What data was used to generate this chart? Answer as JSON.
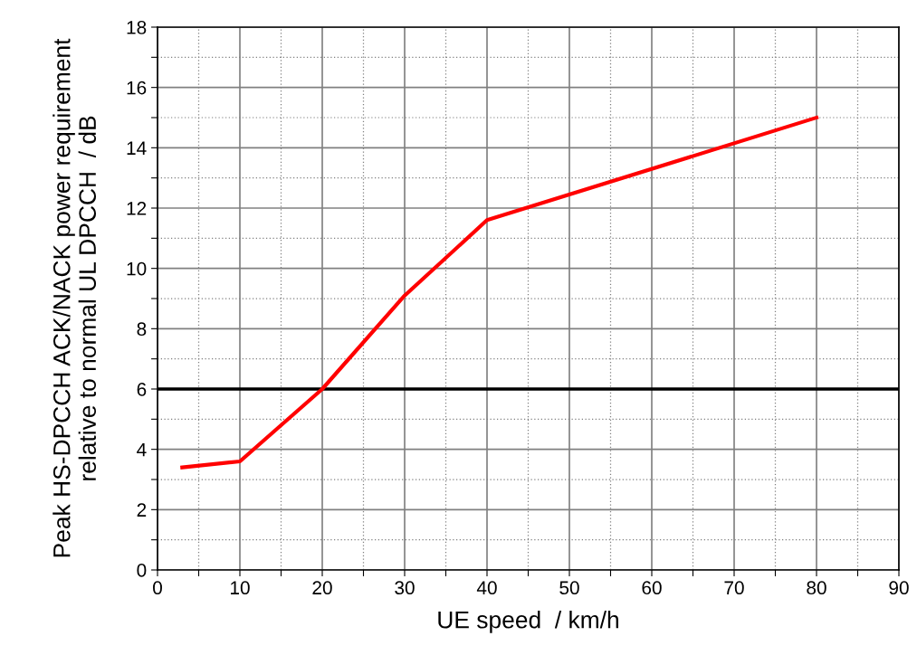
{
  "chart_data": {
    "type": "line",
    "xlabel": "UE speed  / km/h",
    "ylabel": "Peak HS-DPCCH ACK/NACK power requirement\nrelative to normal UL DPCCH  / dB",
    "x": [
      3,
      10,
      20,
      30,
      40,
      80
    ],
    "series": [
      {
        "color": "#ff0000",
        "values": [
          3.4,
          3.6,
          6.0,
          9.1,
          11.6,
          15.0
        ]
      }
    ],
    "xlim": [
      0,
      90
    ],
    "xticks": [
      0,
      {
        "value": 5,
        "label": null
      },
      10,
      {
        "value": 15,
        "label": null
      },
      20,
      {
        "value": 25,
        "label": null
      },
      30,
      {
        "value": 35,
        "label": null
      },
      40,
      {
        "value": 45,
        "label": null
      },
      50,
      {
        "value": 55,
        "label": null
      },
      60,
      {
        "value": 65,
        "label": null
      },
      70,
      {
        "value": 75,
        "label": null
      },
      80,
      {
        "value": 85,
        "label": null
      },
      90
    ],
    "ylim": [
      0,
      18
    ],
    "yticks": [
      0,
      {
        "value": 1,
        "label": null
      },
      2,
      {
        "value": 3,
        "label": null
      },
      4,
      {
        "value": 5,
        "label": null
      },
      6,
      {
        "value": 7,
        "label": null
      },
      8,
      {
        "value": 9,
        "label": null
      },
      10,
      {
        "value": 11,
        "label": null
      },
      12,
      {
        "value": 13,
        "label": null
      },
      14,
      {
        "value": 15,
        "label": null
      },
      16,
      {
        "value": 17,
        "label": null
      },
      18
    ],
    "ref_lines": [
      {
        "axis": "y",
        "value": 6,
        "color": "#000000"
      }
    ],
    "grid": true,
    "marker": "none",
    "line_style": "solid"
  }
}
